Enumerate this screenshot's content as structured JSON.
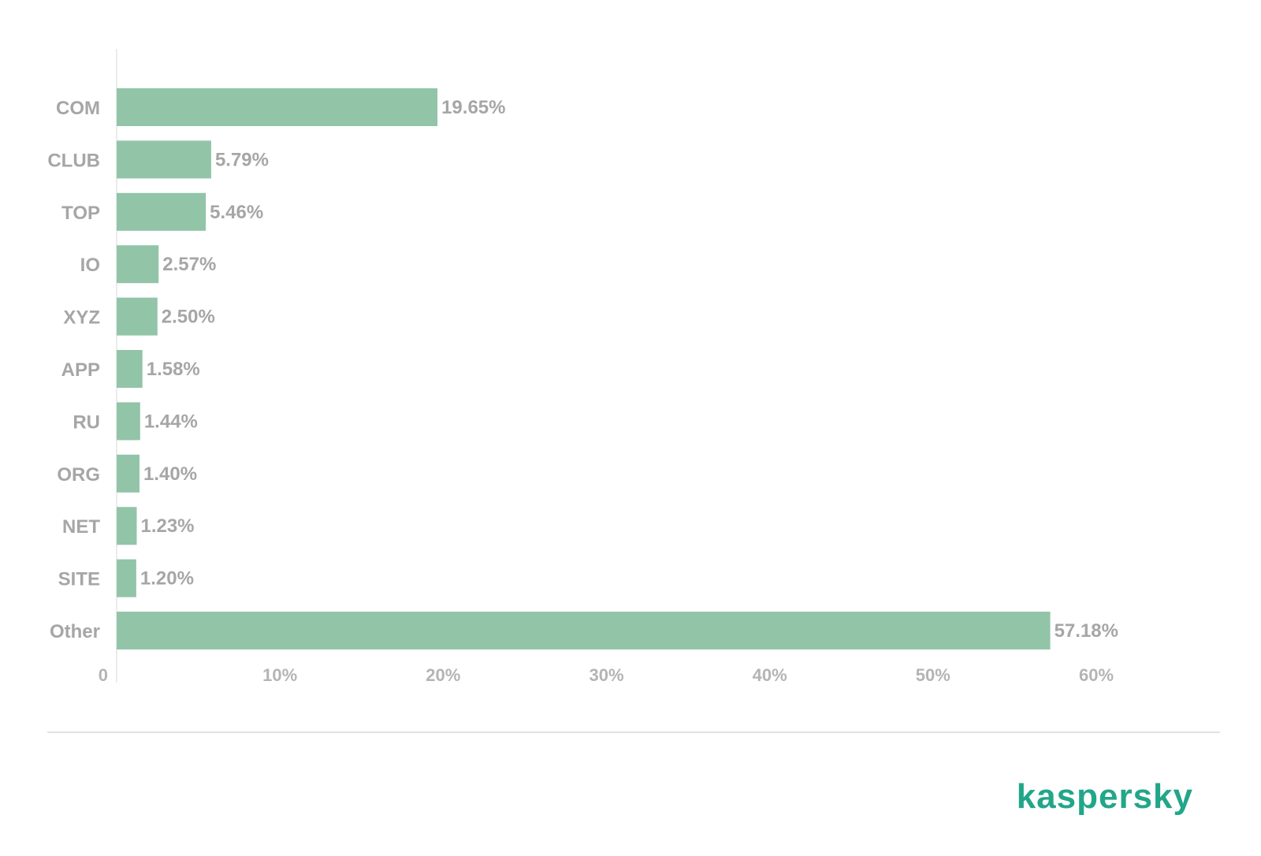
{
  "brand": {
    "name": "kaspersky",
    "color": "#22a68a"
  },
  "colors": {
    "bar": "#92c4a8",
    "axis_text": "#a6a6a6",
    "gridline": "#ececec",
    "rule": "#e2e2e2"
  },
  "chart_data": {
    "type": "bar",
    "orientation": "horizontal",
    "categories": [
      "COM",
      "CLUB",
      "TOP",
      "IO",
      "XYZ",
      "APP",
      "RU",
      "ORG",
      "NET",
      "SITE",
      "Other"
    ],
    "values": [
      19.65,
      5.79,
      5.46,
      2.57,
      2.5,
      1.58,
      1.44,
      1.4,
      1.23,
      1.2,
      57.18
    ],
    "value_labels": [
      "19.65%",
      "5.79%",
      "5.46%",
      "2.57%",
      "2.50%",
      "1.58%",
      "1.44%",
      "1.40%",
      "1.23%",
      "1.20%",
      "57.18%"
    ],
    "x_ticks": [
      {
        "value": 0,
        "label": "0"
      },
      {
        "value": 10,
        "label": "10%"
      },
      {
        "value": 20,
        "label": "20%"
      },
      {
        "value": 30,
        "label": "30%"
      },
      {
        "value": 40,
        "label": "40%"
      },
      {
        "value": 50,
        "label": "50%"
      },
      {
        "value": 60,
        "label": "60%"
      }
    ],
    "xlim": [
      0,
      60
    ],
    "grid": false,
    "legend": "none"
  }
}
